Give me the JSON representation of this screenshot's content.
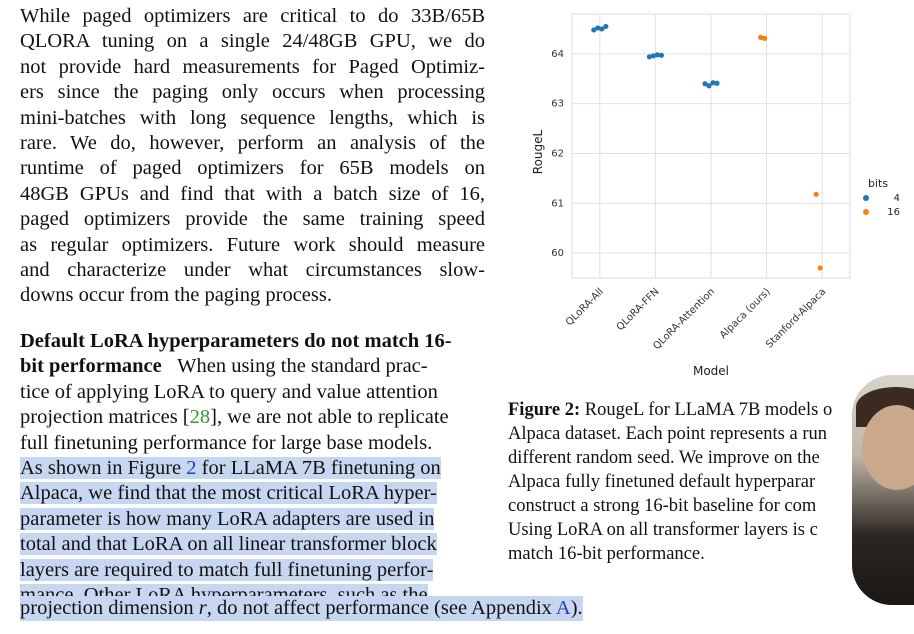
{
  "body_text": {
    "para1_lines": [
      "While paged optimizers are critical to do 33B/65B",
      "QLORA tuning on a single 24/48GB GPU, we do",
      "not provide hard measurements for Paged Optimiz-",
      "ers since the paging only occurs when processing",
      "mini-batches with long sequence lengths, which is",
      "rare. We do, however, perform an analysis of the",
      "runtime of paged optimizers for 65B models on",
      "48GB GPUs and find that with a batch size of 16,",
      "paged optimizers provide the same training speed",
      "as regular optimizers. Future work should measure",
      "and characterize under what circumstances slow-",
      "downs occur from the paging process."
    ],
    "para2_heading_1": "Default LoRA hyperparameters do not match 16-",
    "para2_heading_2": "bit performance",
    "para2_line1_rest": "When using the standard prac-",
    "para2_line2": "tice of applying LoRA to query and value attention",
    "para2_line3_pre": "projection matrices [",
    "para2_cite": "28",
    "para2_line3_post": "], we are not able to replicate",
    "para2_line4": "full finetuning performance for large base models.",
    "para2_line5_pre": "As shown in Figure ",
    "para2_fig_ref": "2",
    "para2_line5_post": " for LLaMA 7B finetuning on",
    "para2_hl_lines": [
      "Alpaca, we find that the most critical LoRA hyper-",
      "parameter is how many LoRA adapters are used in",
      "total and that LoRA on all linear transformer block",
      "layers are required to match full finetuning perfor-",
      "mance. Other LoRA hyperparameters, such as the"
    ],
    "last_line_pre": "projection dimension ",
    "last_line_var": "r",
    "last_line_mid": ", do not affect performance (see Appendix ",
    "last_line_ref": "A",
    "last_line_post": ")."
  },
  "caption": {
    "label": "Figure 2:",
    "line1_rest": "RougeL for LLaMA 7B models o",
    "lines": [
      "Alpaca dataset. Each point represents a run",
      "different random seed. We improve on the",
      "Alpaca fully finetuned default hyperparar",
      "construct a strong 16-bit baseline for com",
      "Using LoRA on all transformer layers is c",
      "match 16-bit performance."
    ]
  },
  "chart_data": {
    "type": "scatter",
    "xlabel": "Model",
    "ylabel": "RougeL",
    "categories": [
      "QLoRA-All",
      "QLoRA-FFN",
      "QLoRA-Attention",
      "Alpaca (ours)",
      "Stanford-Alpaca"
    ],
    "ylim": [
      59.5,
      64.8
    ],
    "yticks": [
      "60",
      "61",
      "62",
      "63",
      "64"
    ],
    "grid": true,
    "legend_title": "bits",
    "legend_position": "right",
    "series": [
      {
        "name": "4",
        "color": "#1f77b4",
        "points": [
          {
            "cat": 0,
            "y": 64.48
          },
          {
            "cat": 0,
            "y": 64.52
          },
          {
            "cat": 0,
            "y": 64.5
          },
          {
            "cat": 0,
            "y": 64.55
          },
          {
            "cat": 1,
            "y": 63.94
          },
          {
            "cat": 1,
            "y": 63.96
          },
          {
            "cat": 1,
            "y": 63.98
          },
          {
            "cat": 1,
            "y": 63.97
          },
          {
            "cat": 2,
            "y": 63.4
          },
          {
            "cat": 2,
            "y": 63.36
          },
          {
            "cat": 2,
            "y": 63.42
          },
          {
            "cat": 2,
            "y": 63.41
          }
        ]
      },
      {
        "name": "16",
        "color": "#ff7f0e",
        "points": [
          {
            "cat": 3,
            "y": 64.33
          },
          {
            "cat": 3,
            "y": 64.31
          },
          {
            "cat": 4,
            "y": 61.18
          },
          {
            "cat": 4,
            "y": 59.7
          }
        ]
      }
    ]
  }
}
